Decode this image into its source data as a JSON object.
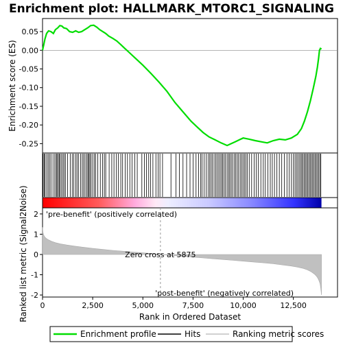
{
  "chart_data": {
    "type": "line",
    "title": "Enrichment plot: HALLMARK_MTORC1_SIGNALING",
    "es_panel": {
      "ylabel": "Enrichment score (ES)",
      "ylim": [
        -0.275,
        0.085
      ],
      "yticks": [
        0.05,
        0.0,
        -0.05,
        -0.1,
        -0.15,
        -0.2,
        -0.25
      ],
      "ytick_labels": [
        "0.05",
        "0.00",
        "-0.05",
        "-0.10",
        "-0.15",
        "-0.20",
        "-0.25"
      ],
      "series": [
        {
          "name": "Enrichment profile",
          "color": "#00dd00",
          "x": [
            0,
            60,
            120,
            200,
            300,
            420,
            540,
            640,
            760,
            860,
            960,
            1060,
            1200,
            1350,
            1500,
            1650,
            1800,
            1950,
            2100,
            2250,
            2400,
            2550,
            2700,
            2850,
            3000,
            3150,
            3300,
            3500,
            3700,
            3900,
            4100,
            4300,
            4600,
            5000,
            5400,
            5800,
            6200,
            6600,
            7000,
            7400,
            7700,
            8000,
            8300,
            8600,
            8900,
            9200,
            9400,
            9600,
            9800,
            10000,
            10300,
            10600,
            10900,
            11200,
            11500,
            11800,
            12100,
            12400,
            12700,
            12900,
            13050,
            13200,
            13350,
            13500,
            13620,
            13700,
            13760,
            13800,
            13850,
            13900
          ],
          "y": [
            0.0,
            0.015,
            0.03,
            0.045,
            0.052,
            0.05,
            0.045,
            0.055,
            0.06,
            0.066,
            0.065,
            0.06,
            0.058,
            0.05,
            0.048,
            0.052,
            0.048,
            0.05,
            0.055,
            0.06,
            0.066,
            0.067,
            0.062,
            0.055,
            0.05,
            0.045,
            0.038,
            0.032,
            0.025,
            0.015,
            0.005,
            -0.005,
            -0.02,
            -0.04,
            -0.062,
            -0.085,
            -0.11,
            -0.14,
            -0.165,
            -0.19,
            -0.205,
            -0.22,
            -0.232,
            -0.24,
            -0.248,
            -0.255,
            -0.25,
            -0.245,
            -0.24,
            -0.235,
            -0.238,
            -0.242,
            -0.245,
            -0.248,
            -0.242,
            -0.238,
            -0.24,
            -0.235,
            -0.225,
            -0.21,
            -0.19,
            -0.165,
            -0.135,
            -0.1,
            -0.07,
            -0.045,
            -0.02,
            0.0,
            0.005,
            0.003
          ]
        }
      ]
    },
    "hits_panel": {
      "legend_label": "Hits",
      "color": "#000000",
      "hit_positions": [
        30,
        90,
        130,
        210,
        280,
        350,
        420,
        520,
        610,
        680,
        720,
        780,
        830,
        880,
        950,
        1020,
        1080,
        1150,
        1250,
        1380,
        1480,
        1560,
        1650,
        1720,
        1800,
        1900,
        1980,
        2050,
        2120,
        2200,
        2260,
        2310,
        2360,
        2420,
        2500,
        2580,
        2650,
        2750,
        2880,
        2990,
        3080,
        3150,
        3320,
        3450,
        3560,
        3680,
        3780,
        3900,
        3990,
        4120,
        4230,
        4350,
        4460,
        4600,
        4720,
        4950,
        5080,
        5180,
        5290,
        5380,
        5500,
        5650,
        5760,
        5850,
        5980,
        6400,
        6650,
        6820,
        7000,
        7180,
        7350,
        7500,
        7650,
        7780,
        7880,
        7950,
        8050,
        8150,
        8250,
        8330,
        8400,
        8470,
        8550,
        8630,
        8700,
        8780,
        8850,
        8920,
        8980,
        9050,
        9120,
        9200,
        9270,
        9330,
        9400,
        9470,
        9550,
        9620,
        9700,
        9770,
        9850,
        9920,
        9990,
        10060,
        10130,
        10200,
        10300,
        10420,
        10550,
        10650,
        10750,
        10880,
        11000,
        11100,
        11230,
        11350,
        11450,
        11560,
        11680,
        11800,
        11920,
        12050,
        12180,
        12290,
        12400,
        12500,
        12580,
        12650,
        12720,
        12790,
        12860,
        12920,
        12980,
        13040,
        13100,
        13160,
        13220,
        13280,
        13340,
        13400,
        13460,
        13520,
        13580,
        13640,
        13700,
        13760,
        13820,
        13870
      ]
    },
    "ranked_panel": {
      "ylabel": "Ranked list metric (Signal2Noise)",
      "ylim": [
        -2.1,
        2.3
      ],
      "yticks": [
        2,
        1,
        0,
        -1,
        -2
      ],
      "ytick_labels": [
        "2",
        "1",
        "0",
        "-1",
        "-2"
      ],
      "legend_label": "Ranking metric scores",
      "color": "#c0c0c0",
      "x": [
        0,
        20,
        60,
        120,
        200,
        300,
        450,
        650,
        900,
        1200,
        1600,
        2000,
        2500,
        3000,
        3500,
        4000,
        4500,
        5000,
        5500,
        5875,
        6500,
        7000,
        7500,
        8000,
        8500,
        9000,
        9500,
        10000,
        10500,
        11000,
        11500,
        12000,
        12400,
        12700,
        13000,
        13200,
        13400,
        13550,
        13650,
        13720,
        13780,
        13830,
        13870,
        13900
      ],
      "y": [
        1.35,
        1.1,
        0.95,
        0.85,
        0.78,
        0.72,
        0.65,
        0.58,
        0.52,
        0.47,
        0.41,
        0.36,
        0.3,
        0.25,
        0.2,
        0.16,
        0.12,
        0.08,
        0.04,
        0.0,
        -0.05,
        -0.09,
        -0.13,
        -0.17,
        -0.21,
        -0.25,
        -0.29,
        -0.33,
        -0.37,
        -0.41,
        -0.46,
        -0.52,
        -0.57,
        -0.62,
        -0.69,
        -0.76,
        -0.86,
        -0.97,
        -1.07,
        -1.17,
        -1.3,
        -1.45,
        -1.7,
        -2.0
      ],
      "zero_cross_label": "Zero cross at 5875",
      "zero_cross": 5875,
      "pos_label": "'pre-benefit' (positively correlated)",
      "neg_label": "'post-benefit' (negatively correlated)",
      "pos_label_color": "#cc0000",
      "neg_label_color": "#0000cc"
    },
    "xlabel": "Rank in Ordered Dataset",
    "xlim": [
      0,
      14700
    ],
    "xticks": [
      0,
      2500,
      5000,
      7500,
      10000,
      12500
    ],
    "xtick_labels": [
      "0",
      "2,500",
      "5,000",
      "7,500",
      "10,000",
      "12,500"
    ],
    "n_genes": 13900,
    "legend_placement": "bottom",
    "legend": [
      {
        "label": "Enrichment profile",
        "color": "#00dd00"
      },
      {
        "label": "Hits",
        "color": "#000000"
      },
      {
        "label": "Ranking metric scores",
        "color": "#c0c0c0"
      }
    ]
  }
}
